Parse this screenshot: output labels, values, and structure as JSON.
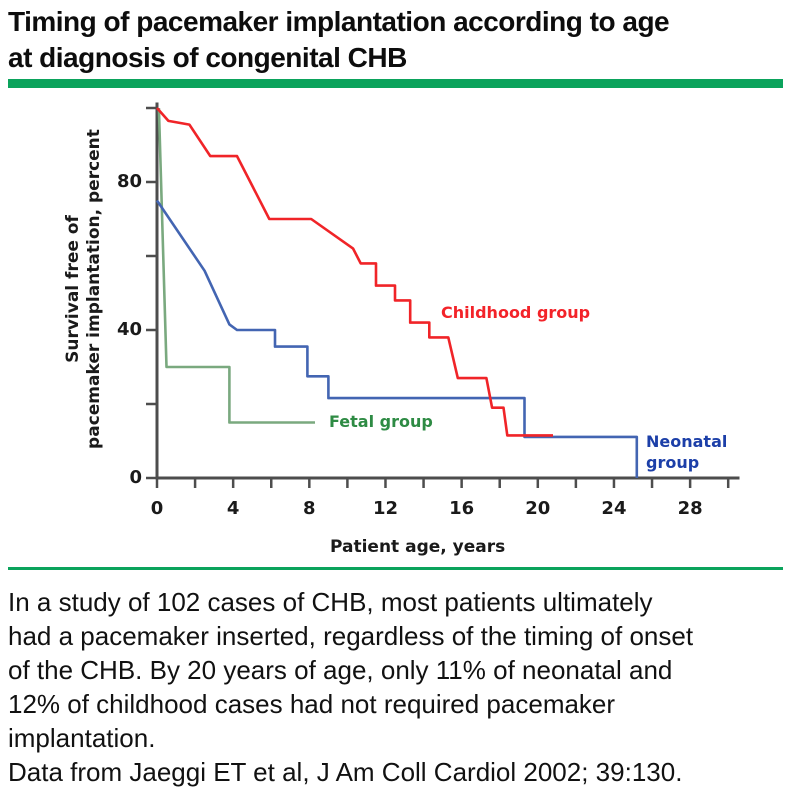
{
  "title": {
    "line1": "Timing of pacemaker implantation according to age",
    "line2": "at diagnosis of congenital CHB"
  },
  "colors": {
    "divider_green": "#0ba35c",
    "axis": "#4d4d4d",
    "childhood_red": "#f02428",
    "neonatal_curve_blue": "#4365b2",
    "neonatal_label_blue": "#1c3fa8",
    "fetal_curve_green": "#7aa97f",
    "fetal_label_green": "#2e8b44"
  },
  "chart_data": {
    "type": "line",
    "subtype": "kaplan-meier-step-survival",
    "title": "",
    "xlabel": "Patient age, years",
    "ylabel": "Survival free of pacemaker implantation, percent",
    "ylabel_lines": [
      "Survival free of",
      "pacemaker implantation, percent"
    ],
    "xlim": [
      0,
      30
    ],
    "ylim": [
      0,
      100
    ],
    "grid": false,
    "legend_position": "labels-on-plot",
    "x_major_ticks": [
      0,
      4,
      8,
      12,
      16,
      20,
      24,
      28
    ],
    "x_minor_tick_step": 2,
    "y_ticks": [
      0,
      20,
      40,
      60,
      80,
      100
    ],
    "y_labeled_ticks": [
      0,
      40,
      80
    ],
    "series": [
      {
        "name": "Fetal group",
        "color": "#7aa97f",
        "label_color": "#2e8b44",
        "points": [
          [
            0.1,
            100
          ],
          [
            0.5,
            30
          ],
          [
            3.8,
            30
          ],
          [
            3.8,
            15
          ],
          [
            8.3,
            15
          ]
        ]
      },
      {
        "name": "Neonatal group",
        "color": "#4365b2",
        "label_color": "#1c3fa8",
        "points": [
          [
            0,
            75
          ],
          [
            2.5,
            56
          ],
          [
            3.8,
            41.5
          ],
          [
            4.2,
            40
          ],
          [
            6.2,
            40
          ],
          [
            6.2,
            35.5
          ],
          [
            7.9,
            35.5
          ],
          [
            7.9,
            27.5
          ],
          [
            9,
            27.5
          ],
          [
            9,
            21.6
          ],
          [
            19.3,
            21.6
          ],
          [
            19.3,
            11.1
          ],
          [
            25.2,
            11.1
          ],
          [
            25.2,
            0
          ]
        ]
      },
      {
        "name": "Childhood group",
        "color": "#f02428",
        "label_color": "#f32329",
        "points": [
          [
            0,
            100
          ],
          [
            0.6,
            96.5
          ],
          [
            1.7,
            95.5
          ],
          [
            2.8,
            87
          ],
          [
            4.2,
            87
          ],
          [
            5.9,
            70
          ],
          [
            8.1,
            70
          ],
          [
            10.3,
            62
          ],
          [
            10.7,
            58
          ],
          [
            11.5,
            58
          ],
          [
            11.5,
            52
          ],
          [
            12.5,
            52
          ],
          [
            12.5,
            48
          ],
          [
            13.3,
            48
          ],
          [
            13.3,
            42
          ],
          [
            14.3,
            42
          ],
          [
            14.3,
            38
          ],
          [
            15.3,
            38
          ],
          [
            15.8,
            27
          ],
          [
            17.3,
            27
          ],
          [
            17.6,
            19
          ],
          [
            18.2,
            19
          ],
          [
            18.4,
            11.5
          ],
          [
            20.8,
            11.5
          ]
        ]
      }
    ]
  },
  "caption": {
    "lines": [
      "In a study of 102 cases of CHB, most patients ultimately",
      "had a pacemaker inserted, regardless of the timing of onset",
      "of the CHB. By 20 years of age, only 11% of neonatal and",
      "12% of childhood cases had not required pacemaker",
      "implantation.",
      "Data from Jaeggi ET et al, J Am Coll Cardiol 2002; 39:130."
    ]
  }
}
